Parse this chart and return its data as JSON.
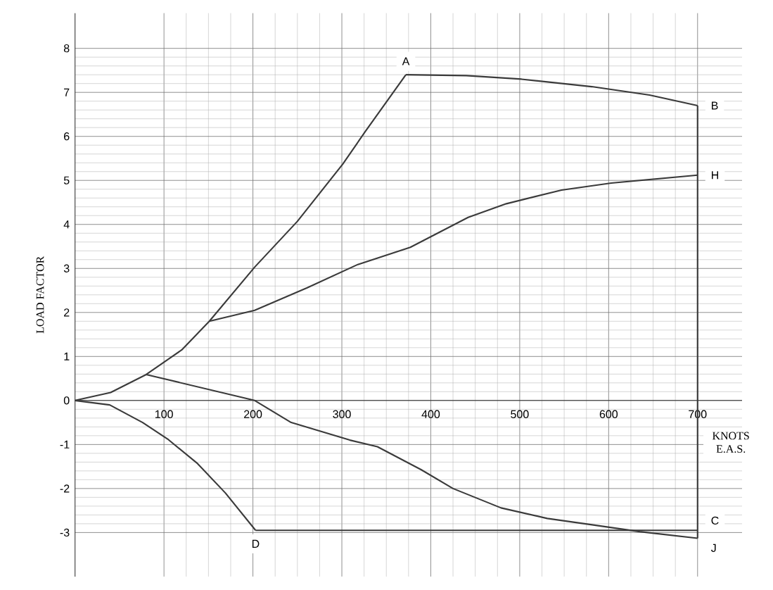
{
  "chart_data": {
    "type": "line",
    "xlabel": "KNOTS E.A.S.",
    "ylabel": "LOAD FACTOR",
    "xlim": [
      0,
      750
    ],
    "ylim": [
      -4,
      8.8
    ],
    "xticks": [
      100,
      200,
      300,
      400,
      500,
      600,
      700
    ],
    "yticks": [
      -3,
      -2,
      -1,
      0,
      1,
      2,
      3,
      4,
      5,
      6,
      7,
      8
    ],
    "grid": true,
    "series": [
      {
        "color": "#3a3a3a",
        "x": [
          0,
          40,
          80,
          120,
          151,
          202,
          250,
          301,
          326,
          372
        ],
        "values": [
          0,
          0.18,
          0.59,
          1.15,
          1.8,
          3.03,
          4.07,
          5.37,
          6.1,
          7.4
        ]
      },
      {
        "color": "#3a3a3a",
        "x": [
          372,
          440,
          502,
          581,
          646,
          700
        ],
        "values": [
          7.4,
          7.38,
          7.3,
          7.13,
          6.94,
          6.7
        ]
      },
      {
        "color": "#3a3a3a",
        "x": [
          151,
          202,
          261,
          318,
          377,
          442,
          485,
          547,
          603,
          700
        ],
        "values": [
          1.8,
          2.05,
          2.56,
          3.09,
          3.48,
          4.16,
          4.47,
          4.78,
          4.94,
          5.12
        ]
      },
      {
        "color": "#3a3a3a",
        "x": [
          80,
          202,
          243,
          309,
          340,
          389,
          425,
          479,
          531,
          580,
          635,
          700
        ],
        "values": [
          0.59,
          0,
          -0.5,
          -0.9,
          -1.05,
          -1.57,
          -2.0,
          -2.44,
          -2.68,
          -2.82,
          -2.98,
          -3.13
        ]
      },
      {
        "color": "#3a3a3a",
        "x": [
          0,
          39,
          76,
          105,
          137,
          169,
          203
        ],
        "values": [
          0,
          -0.1,
          -0.5,
          -0.89,
          -1.42,
          -2.1,
          -2.95
        ]
      },
      {
        "color": "#3a3a3a",
        "x": [
          203,
          700
        ],
        "values": [
          -2.95,
          -2.95
        ]
      },
      {
        "color": "#3a3a3a",
        "x": [
          700,
          700
        ],
        "values": [
          6.7,
          -3.13
        ]
      }
    ],
    "annotations": [
      {
        "text": "A",
        "x": 372,
        "y": 7.4
      },
      {
        "text": "B",
        "x": 700,
        "y": 6.7
      },
      {
        "text": "H",
        "x": 700,
        "y": 5.12
      },
      {
        "text": "C",
        "x": 700,
        "y": -2.95
      },
      {
        "text": "J",
        "x": 700,
        "y": -3.13
      },
      {
        "text": "D",
        "x": 203,
        "y": -2.95
      }
    ]
  }
}
